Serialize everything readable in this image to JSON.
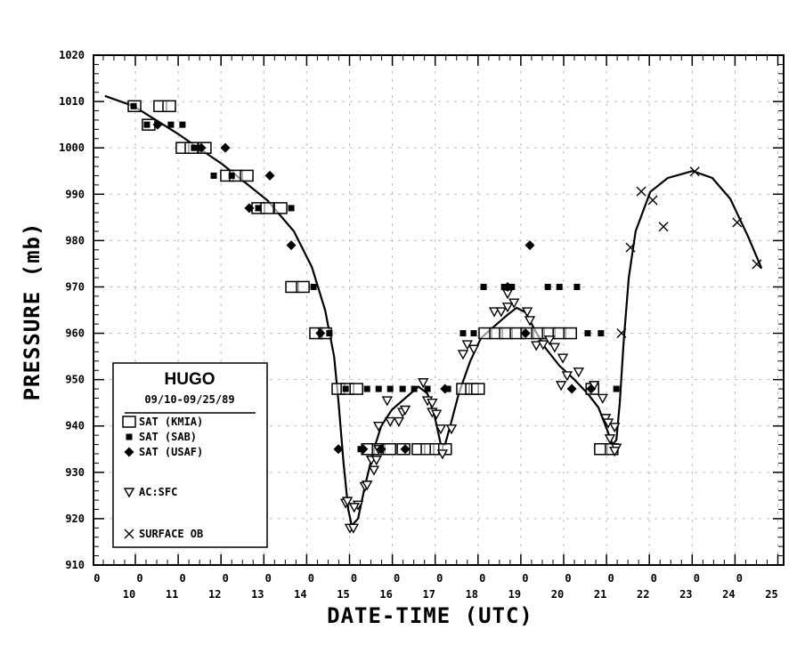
{
  "chart_data": {
    "type": "scatter",
    "title": "HUGO",
    "subtitle": "09/10-09/25/89",
    "xlabel": "DATE-TIME (UTC)",
    "ylabel": "PRESSURE (mb)",
    "xlim": [
      9.023,
      25.135
    ],
    "ylim": [
      910,
      1020
    ],
    "grid": true,
    "legend_placement": "bottom-left",
    "y_ticks": [
      910,
      920,
      930,
      940,
      950,
      960,
      970,
      980,
      990,
      1000,
      1010,
      1020
    ],
    "x_hour_labels": [
      9,
      10,
      11,
      12,
      13,
      14,
      15,
      16,
      17,
      18,
      19,
      20,
      21,
      22,
      23,
      24
    ],
    "x_hour_label_text": "0",
    "x_day_labels": [
      "10",
      "11",
      "12",
      "13",
      "14",
      "15",
      "16",
      "17",
      "18",
      "19",
      "20",
      "21",
      "22",
      "23",
      "24",
      "25"
    ],
    "series": [
      {
        "name": "SAT (KMIA)",
        "marker": "open-square",
        "points": [
          [
            9.98,
            1009
          ],
          [
            10.58,
            1009
          ],
          [
            10.79,
            1009
          ],
          [
            10.31,
            1005
          ],
          [
            11.1,
            1000
          ],
          [
            11.31,
            1000
          ],
          [
            11.62,
            1000
          ],
          [
            12.14,
            994
          ],
          [
            12.35,
            994
          ],
          [
            12.6,
            994
          ],
          [
            12.87,
            987
          ],
          [
            13.08,
            987
          ],
          [
            13.39,
            987
          ],
          [
            13.66,
            970
          ],
          [
            13.91,
            970
          ],
          [
            14.22,
            960
          ],
          [
            14.43,
            960
          ],
          [
            14.74,
            948
          ],
          [
            14.95,
            948
          ],
          [
            15.16,
            948
          ],
          [
            15.43,
            935
          ],
          [
            15.68,
            935
          ],
          [
            15.93,
            935
          ],
          [
            16.26,
            935
          ],
          [
            16.61,
            935
          ],
          [
            16.82,
            935
          ],
          [
            17.03,
            935
          ],
          [
            17.23,
            935
          ],
          [
            17.65,
            948
          ],
          [
            17.86,
            948
          ],
          [
            18.0,
            948
          ],
          [
            18.17,
            960
          ],
          [
            18.42,
            960
          ],
          [
            18.65,
            960
          ],
          [
            18.9,
            960
          ],
          [
            19.15,
            960
          ],
          [
            19.4,
            960
          ],
          [
            19.65,
            960
          ],
          [
            19.9,
            960
          ],
          [
            20.15,
            960
          ],
          [
            20.67,
            948
          ],
          [
            20.87,
            935
          ],
          [
            21.12,
            935
          ]
        ]
      },
      {
        "name": "SAT (SAB)",
        "marker": "filled-square",
        "points": [
          [
            9.96,
            1009
          ],
          [
            10.27,
            1005
          ],
          [
            10.83,
            1005
          ],
          [
            11.1,
            1005
          ],
          [
            11.37,
            1000
          ],
          [
            11.83,
            994
          ],
          [
            12.25,
            994
          ],
          [
            12.87,
            987
          ],
          [
            13.64,
            987
          ],
          [
            14.16,
            970
          ],
          [
            14.53,
            960
          ],
          [
            14.91,
            948
          ],
          [
            15.41,
            948
          ],
          [
            15.68,
            948
          ],
          [
            15.95,
            948
          ],
          [
            16.24,
            948
          ],
          [
            16.51,
            948
          ],
          [
            16.82,
            948
          ],
          [
            17.3,
            948
          ],
          [
            15.26,
            935
          ],
          [
            18.13,
            970
          ],
          [
            18.61,
            970
          ],
          [
            18.79,
            970
          ],
          [
            19.63,
            970
          ],
          [
            19.9,
            970
          ],
          [
            20.31,
            970
          ],
          [
            17.65,
            960
          ],
          [
            17.9,
            960
          ],
          [
            20.56,
            960
          ],
          [
            20.87,
            960
          ],
          [
            21.23,
            948
          ]
        ]
      },
      {
        "name": "SAT (USAF)",
        "marker": "diamond",
        "points": [
          [
            10.52,
            1005
          ],
          [
            11.54,
            1000
          ],
          [
            12.1,
            1000
          ],
          [
            13.14,
            994
          ],
          [
            12.66,
            987
          ],
          [
            13.64,
            979
          ],
          [
            14.32,
            960
          ],
          [
            14.74,
            935
          ],
          [
            15.32,
            935
          ],
          [
            15.74,
            935
          ],
          [
            16.3,
            935
          ],
          [
            17.23,
            948
          ],
          [
            18.69,
            970
          ],
          [
            19.11,
            960
          ],
          [
            19.21,
            979
          ],
          [
            20.19,
            948
          ],
          [
            20.64,
            948
          ]
        ]
      },
      {
        "name": "AC:SFC",
        "marker": "down-triangle",
        "points": [
          [
            15.01,
            918
          ],
          [
            15.09,
            918
          ],
          [
            14.91,
            923.4
          ],
          [
            15.2,
            923
          ],
          [
            15.11,
            922.5
          ],
          [
            15.36,
            927
          ],
          [
            15.41,
            927.3
          ],
          [
            15.51,
            932.7
          ],
          [
            15.63,
            932.7
          ],
          [
            15.57,
            930.5
          ],
          [
            15.68,
            935
          ],
          [
            15.88,
            945.5
          ],
          [
            15.68,
            940
          ],
          [
            15.95,
            941
          ],
          [
            16.15,
            941
          ],
          [
            16.24,
            943
          ],
          [
            16.3,
            943.5
          ],
          [
            16.72,
            949.4
          ],
          [
            16.82,
            945.5
          ],
          [
            16.93,
            945
          ],
          [
            16.93,
            943
          ],
          [
            17.03,
            942.6
          ],
          [
            17.13,
            939.4
          ],
          [
            17.38,
            939.4
          ],
          [
            17.17,
            934
          ],
          [
            14.95,
            923.8
          ],
          [
            18.69,
            968.6
          ],
          [
            18.84,
            966.6
          ],
          [
            18.38,
            964.7
          ],
          [
            18.54,
            964.7
          ],
          [
            18.69,
            965.7
          ],
          [
            19.15,
            964.7
          ],
          [
            19.21,
            962.8
          ],
          [
            17.75,
            957.6
          ],
          [
            17.65,
            955.5
          ],
          [
            17.9,
            956.6
          ],
          [
            19.36,
            957.4
          ],
          [
            19.52,
            957.6
          ],
          [
            19.67,
            958.6
          ],
          [
            19.79,
            957
          ],
          [
            19.98,
            954.7
          ],
          [
            20.08,
            950.9
          ],
          [
            20.35,
            951.7
          ],
          [
            19.94,
            948.8
          ],
          [
            20.71,
            948.8
          ],
          [
            20.91,
            946
          ],
          [
            20.98,
            941.7
          ],
          [
            21.04,
            940.7
          ],
          [
            21.19,
            939.8
          ],
          [
            21.08,
            937.3
          ],
          [
            21.23,
            935.3
          ],
          [
            21.19,
            934.6
          ]
        ]
      },
      {
        "name": "SURFACE OB",
        "marker": "x",
        "points": [
          [
            21.35,
            960
          ],
          [
            21.56,
            978.5
          ],
          [
            21.81,
            990.6
          ],
          [
            22.08,
            988.7
          ],
          [
            22.33,
            983
          ],
          [
            23.06,
            994.9
          ],
          [
            24.05,
            983.9
          ],
          [
            24.51,
            974.9
          ]
        ]
      }
    ],
    "fit_curve": [
      [
        9.29,
        1011.2
      ],
      [
        9.96,
        1009
      ],
      [
        11.0,
        1003
      ],
      [
        12.04,
        996.4
      ],
      [
        13.08,
        988.7
      ],
      [
        13.7,
        982
      ],
      [
        14.12,
        974.3
      ],
      [
        14.43,
        965
      ],
      [
        14.64,
        955
      ],
      [
        14.74,
        945.5
      ],
      [
        14.86,
        932
      ],
      [
        14.97,
        922
      ],
      [
        15.05,
        918.5
      ],
      [
        15.2,
        920
      ],
      [
        15.36,
        927
      ],
      [
        15.57,
        935
      ],
      [
        15.74,
        940
      ],
      [
        15.99,
        943.5
      ],
      [
        16.3,
        946
      ],
      [
        16.61,
        948.5
      ],
      [
        16.82,
        947
      ],
      [
        16.99,
        942
      ],
      [
        17.13,
        936
      ],
      [
        17.23,
        936
      ],
      [
        17.38,
        941
      ],
      [
        17.55,
        947
      ],
      [
        17.82,
        954
      ],
      [
        18.07,
        959
      ],
      [
        18.38,
        961.5
      ],
      [
        18.69,
        964
      ],
      [
        18.9,
        965.5
      ],
      [
        19.11,
        964.5
      ],
      [
        19.31,
        961
      ],
      [
        19.56,
        957
      ],
      [
        19.9,
        953
      ],
      [
        20.25,
        950
      ],
      [
        20.56,
        947
      ],
      [
        20.81,
        944
      ],
      [
        21.02,
        939
      ],
      [
        21.14,
        936
      ],
      [
        21.23,
        937
      ],
      [
        21.31,
        945
      ],
      [
        21.4,
        958
      ],
      [
        21.52,
        972
      ],
      [
        21.68,
        982
      ],
      [
        22.02,
        990.5
      ],
      [
        22.43,
        993.5
      ],
      [
        23.01,
        995
      ],
      [
        23.47,
        993.5
      ],
      [
        23.89,
        989
      ],
      [
        24.3,
        981
      ],
      [
        24.62,
        974
      ]
    ]
  }
}
